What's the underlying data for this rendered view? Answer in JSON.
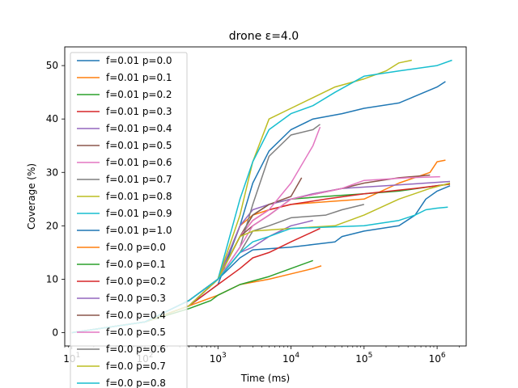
{
  "chart_data": {
    "type": "line",
    "title": "drone ε=4.0",
    "xlabel": "Time (ms)",
    "ylabel": "Coverage (%)",
    "xscale": "log",
    "xlim": [
      8,
      2500000
    ],
    "ylim": [
      -2.5,
      53.5
    ],
    "grid": false,
    "legend_position": "upper-left",
    "x_ticks": [
      {
        "value": 10,
        "base": "10",
        "exp": "1"
      },
      {
        "value": 100,
        "base": "10",
        "exp": "2"
      },
      {
        "value": 1000,
        "base": "10",
        "exp": "3"
      },
      {
        "value": 10000,
        "base": "10",
        "exp": "4"
      },
      {
        "value": 100000,
        "base": "10",
        "exp": "5"
      },
      {
        "value": 1000000,
        "base": "10",
        "exp": "6"
      }
    ],
    "y_ticks": [
      0,
      10,
      20,
      30,
      40,
      50
    ],
    "series": [
      {
        "name": "f=0.01 p=0.0",
        "color": "#1f77b4",
        "points": [
          [
            10,
            0
          ],
          [
            100,
            2
          ],
          [
            400,
            5
          ],
          [
            1000,
            9
          ],
          [
            2000,
            20
          ],
          [
            3000,
            28
          ],
          [
            5000,
            34
          ],
          [
            10000,
            38
          ],
          [
            20000,
            40
          ],
          [
            50000,
            41
          ],
          [
            100000,
            42
          ],
          [
            300000,
            43
          ],
          [
            1000000,
            46
          ],
          [
            1300000,
            47
          ]
        ]
      },
      {
        "name": "f=0.01 p=0.1",
        "color": "#ff7f0e",
        "points": [
          [
            10,
            0
          ],
          [
            100,
            2
          ],
          [
            400,
            6
          ],
          [
            1000,
            10
          ],
          [
            2000,
            20
          ],
          [
            3000,
            22
          ],
          [
            5000,
            23
          ],
          [
            10000,
            24
          ],
          [
            30000,
            24.5
          ],
          [
            100000,
            25
          ],
          [
            300000,
            28
          ],
          [
            800000,
            30
          ],
          [
            1000000,
            32
          ],
          [
            1300000,
            32.3
          ]
        ]
      },
      {
        "name": "f=0.01 p=0.2",
        "color": "#2ca02c",
        "points": [
          [
            10,
            0
          ],
          [
            100,
            2
          ],
          [
            400,
            5
          ],
          [
            1000,
            10
          ],
          [
            2000,
            18
          ],
          [
            3000,
            22
          ],
          [
            5000,
            24
          ],
          [
            10000,
            25
          ],
          [
            30000,
            25.5
          ],
          [
            100000,
            26
          ],
          [
            300000,
            26.5
          ],
          [
            1000000,
            27.5
          ],
          [
            1500000,
            27.8
          ]
        ]
      },
      {
        "name": "f=0.01 p=0.3",
        "color": "#d62728",
        "points": [
          [
            10,
            0
          ],
          [
            100,
            2
          ],
          [
            400,
            6
          ],
          [
            1000,
            10
          ],
          [
            2000,
            18
          ],
          [
            3000,
            21
          ],
          [
            5000,
            23
          ],
          [
            10000,
            24
          ],
          [
            30000,
            25
          ],
          [
            100000,
            26
          ],
          [
            500000,
            27
          ],
          [
            1000000,
            27.5
          ],
          [
            1500000,
            27.8
          ]
        ]
      },
      {
        "name": "f=0.01 p=0.4",
        "color": "#9467bd",
        "points": [
          [
            10,
            0
          ],
          [
            100,
            2
          ],
          [
            400,
            5
          ],
          [
            1000,
            10
          ],
          [
            2000,
            20
          ],
          [
            3000,
            23
          ],
          [
            5000,
            24
          ],
          [
            10000,
            25
          ],
          [
            20000,
            26
          ],
          [
            50000,
            27
          ],
          [
            200000,
            27.5
          ],
          [
            700000,
            28
          ],
          [
            1500000,
            28.3
          ]
        ]
      },
      {
        "name": "f=0.01 p=0.5",
        "color": "#8c564b",
        "points": [
          [
            10,
            0
          ],
          [
            100,
            2
          ],
          [
            400,
            5
          ],
          [
            1000,
            10
          ],
          [
            2000,
            18
          ],
          [
            3000,
            22
          ],
          [
            5000,
            24
          ],
          [
            10000,
            25.5
          ],
          [
            14000,
            29
          ]
        ]
      },
      {
        "name": "f=0.01 p=0.6",
        "color": "#e377c2",
        "points": [
          [
            10,
            0
          ],
          [
            100,
            2
          ],
          [
            400,
            5
          ],
          [
            1000,
            10
          ],
          [
            2000,
            18
          ],
          [
            3000,
            21
          ],
          [
            5000,
            23
          ],
          [
            10000,
            28
          ],
          [
            20000,
            35
          ],
          [
            25000,
            38.5
          ]
        ]
      },
      {
        "name": "f=0.01 p=0.7",
        "color": "#7f7f7f",
        "points": [
          [
            10,
            0
          ],
          [
            100,
            2
          ],
          [
            400,
            6
          ],
          [
            1000,
            10
          ],
          [
            2000,
            16
          ],
          [
            3000,
            24
          ],
          [
            5000,
            33
          ],
          [
            10000,
            37
          ],
          [
            20000,
            38
          ],
          [
            25000,
            39
          ]
        ]
      },
      {
        "name": "f=0.01 p=0.8",
        "color": "#bcbd22",
        "points": [
          [
            10,
            0
          ],
          [
            100,
            2
          ],
          [
            400,
            6
          ],
          [
            1000,
            10
          ],
          [
            2000,
            22
          ],
          [
            3000,
            32
          ],
          [
            5000,
            40
          ],
          [
            10000,
            42
          ],
          [
            20000,
            44
          ],
          [
            40000,
            46
          ],
          [
            100000,
            47.5
          ],
          [
            200000,
            49
          ],
          [
            300000,
            50.5
          ],
          [
            450000,
            51
          ]
        ]
      },
      {
        "name": "f=0.01 p=0.9",
        "color": "#17becf",
        "points": [
          [
            10,
            0
          ],
          [
            100,
            2
          ],
          [
            400,
            6
          ],
          [
            1000,
            10
          ],
          [
            2000,
            25
          ],
          [
            3000,
            32
          ],
          [
            5000,
            38
          ],
          [
            10000,
            41
          ],
          [
            20000,
            42.5
          ],
          [
            40000,
            45
          ],
          [
            100000,
            48
          ],
          [
            300000,
            49
          ],
          [
            1000000,
            50
          ],
          [
            1600000,
            51
          ]
        ]
      },
      {
        "name": "f=0.01 p=1.0",
        "color": "#1f77b4",
        "points": [
          [
            10,
            0
          ],
          [
            100,
            2
          ],
          [
            400,
            6
          ],
          [
            1000,
            10
          ],
          [
            2000,
            14
          ],
          [
            3000,
            15.5
          ],
          [
            10000,
            16
          ],
          [
            20000,
            16.5
          ],
          [
            40000,
            17
          ],
          [
            50000,
            18
          ],
          [
            100000,
            19
          ],
          [
            300000,
            20
          ],
          [
            500000,
            22
          ],
          [
            700000,
            25
          ],
          [
            1000000,
            26.5
          ],
          [
            1500000,
            27.5
          ]
        ]
      },
      {
        "name": "f=0.0 p=0.0",
        "color": "#ff7f0e",
        "points": [
          [
            10,
            0
          ],
          [
            100,
            2
          ],
          [
            400,
            5
          ],
          [
            1000,
            7
          ],
          [
            2000,
            9
          ],
          [
            5000,
            10
          ],
          [
            10000,
            11
          ],
          [
            20000,
            12
          ],
          [
            26000,
            12.5
          ]
        ]
      },
      {
        "name": "f=0.0 p=0.1",
        "color": "#2ca02c",
        "points": [
          [
            10,
            0
          ],
          [
            100,
            2
          ],
          [
            400,
            4.5
          ],
          [
            800,
            6
          ],
          [
            1000,
            7
          ],
          [
            2000,
            9
          ],
          [
            5000,
            10.5
          ],
          [
            10000,
            12
          ],
          [
            20000,
            13.5
          ]
        ]
      },
      {
        "name": "f=0.0 p=0.2",
        "color": "#d62728",
        "points": [
          [
            10,
            0
          ],
          [
            100,
            2
          ],
          [
            400,
            5
          ],
          [
            1000,
            9
          ],
          [
            2000,
            12
          ],
          [
            3000,
            14
          ],
          [
            5000,
            15
          ],
          [
            10000,
            17
          ],
          [
            25000,
            19.5
          ]
        ]
      },
      {
        "name": "f=0.0 p=0.3",
        "color": "#9467bd",
        "points": [
          [
            10,
            0
          ],
          [
            100,
            2
          ],
          [
            400,
            5
          ],
          [
            1000,
            10
          ],
          [
            2000,
            15
          ],
          [
            3000,
            16
          ],
          [
            5000,
            18
          ],
          [
            10000,
            20
          ],
          [
            20000,
            21
          ]
        ]
      },
      {
        "name": "f=0.0 p=0.4",
        "color": "#8c564b",
        "points": [
          [
            10,
            0
          ],
          [
            100,
            2
          ],
          [
            400,
            5
          ],
          [
            1000,
            10
          ],
          [
            2000,
            18
          ],
          [
            3000,
            20
          ],
          [
            5000,
            22
          ],
          [
            10000,
            25
          ],
          [
            50000,
            27
          ],
          [
            100000,
            28
          ],
          [
            300000,
            29
          ],
          [
            800000,
            29.5
          ]
        ]
      },
      {
        "name": "f=0.0 p=0.5",
        "color": "#e377c2",
        "points": [
          [
            10,
            0
          ],
          [
            100,
            2
          ],
          [
            400,
            6
          ],
          [
            1000,
            10
          ],
          [
            2000,
            16
          ],
          [
            3000,
            20
          ],
          [
            5000,
            22
          ],
          [
            10000,
            25
          ],
          [
            50000,
            27
          ],
          [
            100000,
            28.5
          ],
          [
            400000,
            29
          ],
          [
            1100000,
            29.2
          ]
        ]
      },
      {
        "name": "f=0.0 p=0.6",
        "color": "#7f7f7f",
        "points": [
          [
            10,
            0
          ],
          [
            100,
            2
          ],
          [
            400,
            5
          ],
          [
            1000,
            10
          ],
          [
            2000,
            15
          ],
          [
            3000,
            19
          ],
          [
            5000,
            20
          ],
          [
            10000,
            21.5
          ],
          [
            30000,
            22
          ],
          [
            50000,
            23
          ],
          [
            100000,
            24
          ]
        ]
      },
      {
        "name": "f=0.0 p=0.7",
        "color": "#bcbd22",
        "points": [
          [
            10,
            0
          ],
          [
            100,
            2
          ],
          [
            400,
            5
          ],
          [
            1000,
            10
          ],
          [
            2000,
            18
          ],
          [
            3000,
            19
          ],
          [
            10000,
            19.5
          ],
          [
            40000,
            20
          ],
          [
            100000,
            22
          ],
          [
            300000,
            25
          ],
          [
            800000,
            27
          ],
          [
            1500000,
            28
          ]
        ]
      },
      {
        "name": "f=0.0 p=0.8",
        "color": "#17becf",
        "points": [
          [
            10,
            0
          ],
          [
            100,
            2
          ],
          [
            400,
            6
          ],
          [
            1000,
            10
          ],
          [
            2000,
            15
          ],
          [
            3000,
            17
          ],
          [
            5000,
            18
          ],
          [
            10000,
            19.5
          ],
          [
            100000,
            20
          ],
          [
            300000,
            21
          ],
          [
            500000,
            22
          ],
          [
            700000,
            23
          ],
          [
            1000000,
            23.3
          ],
          [
            1400000,
            23.5
          ]
        ]
      }
    ]
  }
}
